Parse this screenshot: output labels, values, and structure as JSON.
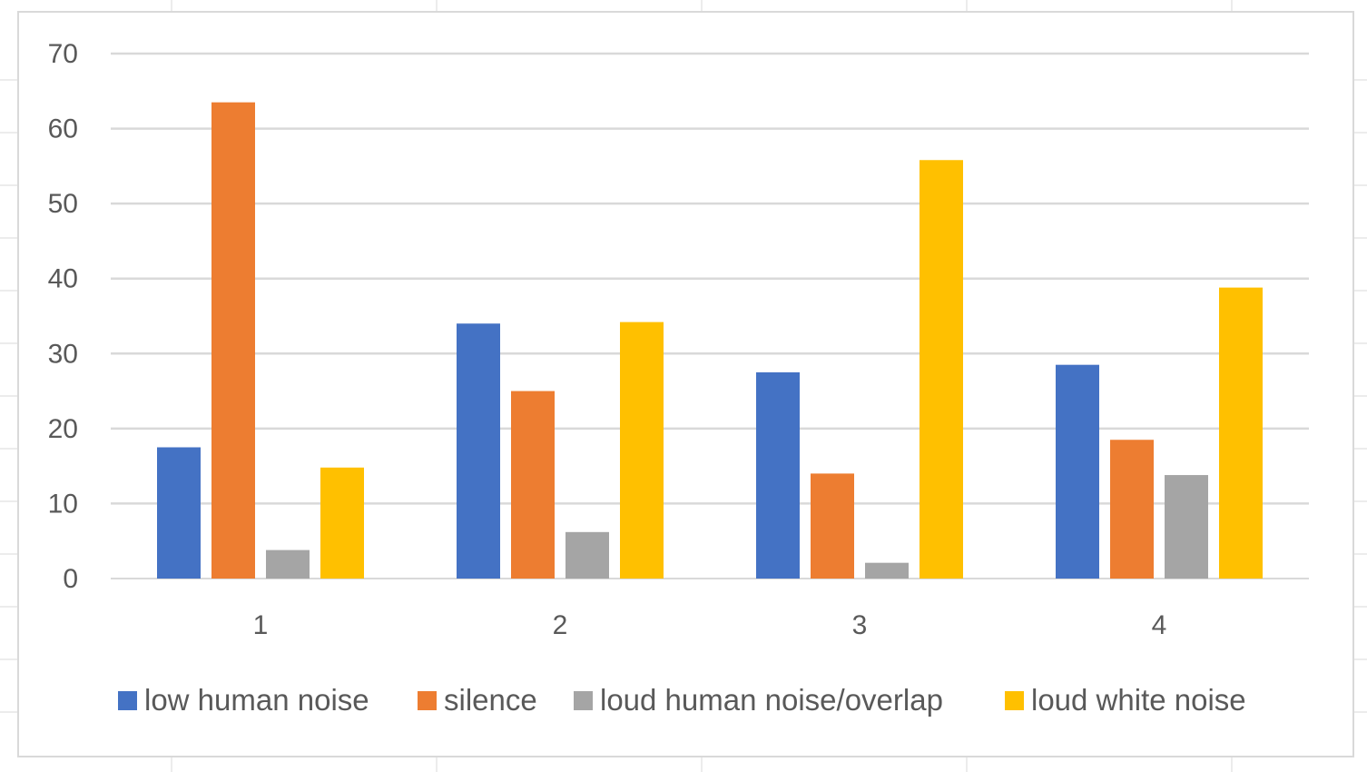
{
  "chart_data": {
    "type": "bar",
    "title": "",
    "xlabel": "",
    "ylabel": "",
    "categories": [
      "1",
      "2",
      "3",
      "4"
    ],
    "ylim": [
      0,
      70
    ],
    "yticks": [
      "0",
      "10",
      "20",
      "30",
      "40",
      "50",
      "60",
      "70"
    ],
    "grid": true,
    "legend_position": "bottom",
    "series": [
      {
        "name": "low human noise",
        "color": "#4472C4",
        "values": [
          17.5,
          34,
          27.5,
          28.5
        ]
      },
      {
        "name": "silence",
        "color": "#ED7D31",
        "values": [
          63.5,
          25,
          14,
          18.5
        ]
      },
      {
        "name": "loud human noise/overlap",
        "color": "#A5A5A5",
        "values": [
          3.8,
          6.2,
          2.1,
          13.8
        ]
      },
      {
        "name": "loud white noise",
        "color": "#FFC000",
        "values": [
          14.8,
          34.2,
          55.8,
          38.8
        ]
      }
    ]
  }
}
